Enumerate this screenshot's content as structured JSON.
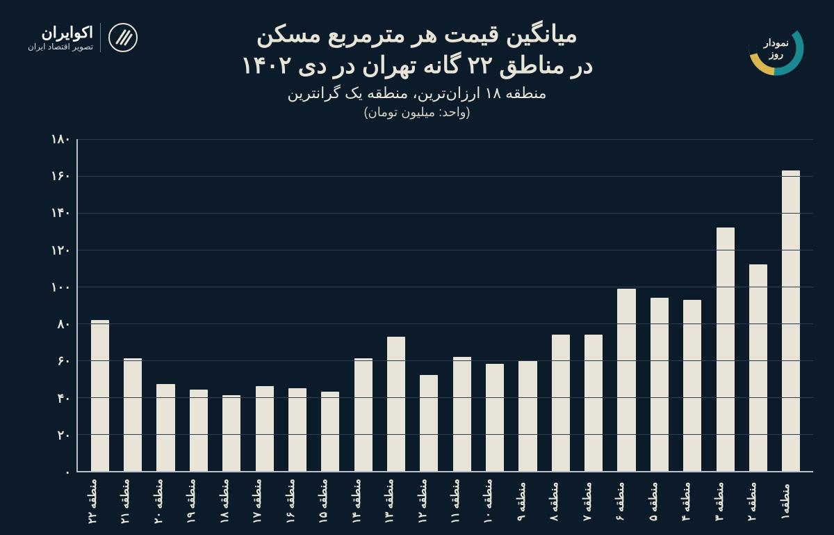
{
  "brand": {
    "name": "اکوایران",
    "tagline": "تصویر اقتصاد ایران"
  },
  "badge": {
    "line1": "نمودار",
    "line2": "روز",
    "ring_colors": {
      "a": "#1a8a92",
      "b": "#0b1b2a",
      "c": "#d9b64f"
    },
    "center_bg": "#0b1b2a"
  },
  "titles": {
    "line1": "میانگین قیمت هر مترمربع مسکن",
    "line2": "در مناطق ۲۲ گانه تهران در دی ۱۴۰۲",
    "subtitle": "منطقه ۱۸ ارزان‌ترین، منطقه یک گرانترین",
    "unit": "(واحد: میلیون تومان)"
  },
  "chart": {
    "type": "bar",
    "background_color": "#0b1b2a",
    "bar_color": "#e8e4d8",
    "axis_color": "#b9c0c6",
    "grid_color": "#2e3e4c",
    "text_color": "#e8e4d8",
    "y": {
      "min": 0,
      "max": 180,
      "step": 20,
      "labels": [
        "۰",
        "۲۰",
        "۴۰",
        "۶۰",
        "۸۰",
        "۱۰۰",
        "۱۲۰",
        "۱۴۰",
        "۱۶۰",
        "۱۸۰"
      ]
    },
    "bars": [
      {
        "label": "منطقه۱",
        "value": 163
      },
      {
        "label": "منطقه ۲",
        "value": 112
      },
      {
        "label": "منطقه ۳",
        "value": 132
      },
      {
        "label": "منطقه ۴",
        "value": 93
      },
      {
        "label": "منطقه ۵",
        "value": 94
      },
      {
        "label": "منطقه ۶",
        "value": 99
      },
      {
        "label": "منطقه ۷",
        "value": 74
      },
      {
        "label": "منطقه ۸",
        "value": 74
      },
      {
        "label": "منطقه ۹",
        "value": 60
      },
      {
        "label": "منطقه ۱۰",
        "value": 58
      },
      {
        "label": "منطقه ۱۱",
        "value": 62
      },
      {
        "label": "منطقه ۱۲",
        "value": 52
      },
      {
        "label": "منطقه ۱۳",
        "value": 73
      },
      {
        "label": "منطقه ۱۴",
        "value": 61
      },
      {
        "label": "منطقه ۱۵",
        "value": 43
      },
      {
        "label": "منطقه ۱۶",
        "value": 45
      },
      {
        "label": "منطقه ۱۷",
        "value": 46
      },
      {
        "label": "منطقه ۱۸",
        "value": 41
      },
      {
        "label": "منطقه ۱۹",
        "value": 44
      },
      {
        "label": "منطقه ۲۰",
        "value": 47
      },
      {
        "label": "منطقه ۲۱",
        "value": 61
      },
      {
        "label": "منطقه ۲۲",
        "value": 82
      }
    ]
  }
}
